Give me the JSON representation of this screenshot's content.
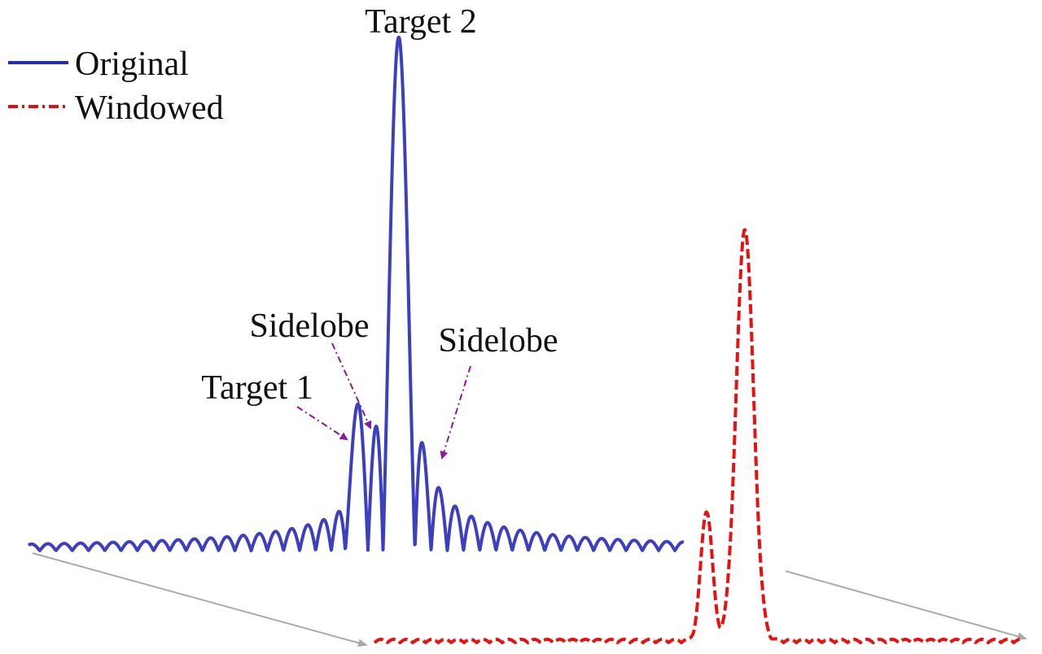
{
  "legend": {
    "items": [
      {
        "label": "Original"
      },
      {
        "label": "Windowed"
      }
    ]
  },
  "annotations": {
    "target2": "Target 2",
    "sidelobe_left": "Sidelobe",
    "sidelobe_right": "Sidelobe",
    "target1": "Target 1"
  }
}
